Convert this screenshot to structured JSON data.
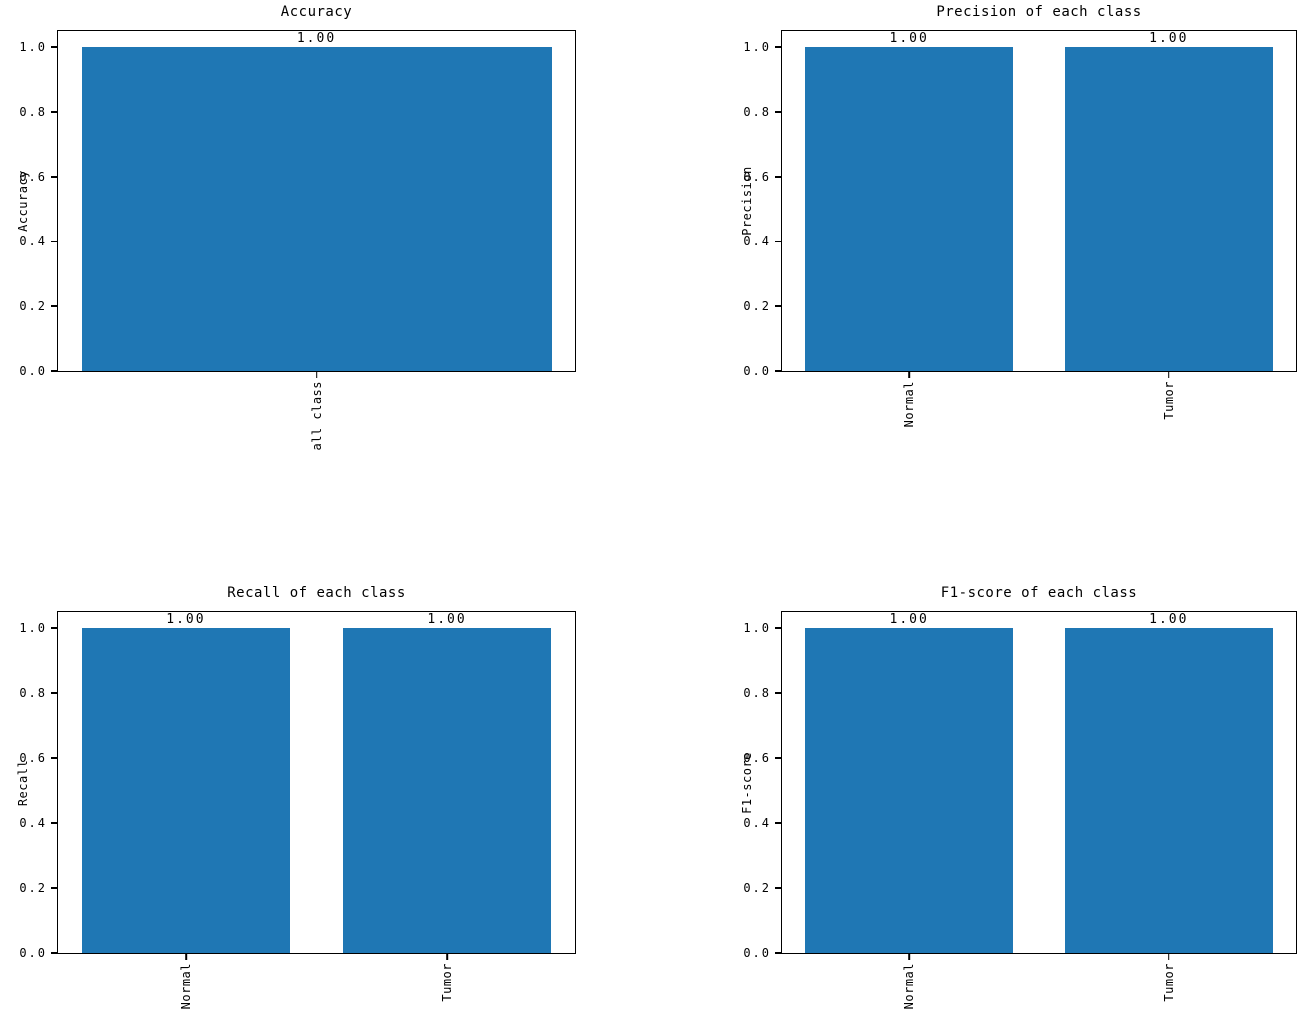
{
  "figure": {
    "background_color": "#ffffff",
    "bar_color": "#1f77b4",
    "axis_color": "#000000"
  },
  "chart_data": [
    {
      "type": "bar",
      "title": "Accuracy",
      "ylabel": "Accuracy",
      "xlabel": "",
      "categories": [
        "all class"
      ],
      "values": [
        1.0
      ],
      "value_labels": [
        "1.00"
      ],
      "yticks": [
        0.0,
        0.2,
        0.4,
        0.6,
        0.8,
        1.0
      ],
      "ytick_labels": [
        "0.0",
        "0.2",
        "0.4",
        "0.6",
        "0.8",
        "1.0"
      ],
      "ylim": [
        0,
        1.05
      ],
      "bar_width": 0.8,
      "x_margin": 0.05,
      "grid": false,
      "legend": null,
      "bar_color": "#1f77b4",
      "xtick_rotation": 90
    },
    {
      "type": "bar",
      "title": "Precision of each class",
      "ylabel": "Precision",
      "xlabel": "",
      "categories": [
        "Normal",
        "Tumor"
      ],
      "values": [
        1.0,
        1.0
      ],
      "value_labels": [
        "1.00",
        "1.00"
      ],
      "yticks": [
        0.0,
        0.2,
        0.4,
        0.6,
        0.8,
        1.0
      ],
      "ytick_labels": [
        "0.0",
        "0.2",
        "0.4",
        "0.6",
        "0.8",
        "1.0"
      ],
      "ylim": [
        0,
        1.05
      ],
      "bar_width": 0.8,
      "x_margin": 0.05,
      "grid": false,
      "legend": null,
      "bar_color": "#1f77b4",
      "xtick_rotation": 90
    },
    {
      "type": "bar",
      "title": "Recall of each class",
      "ylabel": "Recall",
      "xlabel": "",
      "categories": [
        "Normal",
        "Tumor"
      ],
      "values": [
        1.0,
        1.0
      ],
      "value_labels": [
        "1.00",
        "1.00"
      ],
      "yticks": [
        0.0,
        0.2,
        0.4,
        0.6,
        0.8,
        1.0
      ],
      "ytick_labels": [
        "0.0",
        "0.2",
        "0.4",
        "0.6",
        "0.8",
        "1.0"
      ],
      "ylim": [
        0,
        1.05
      ],
      "bar_width": 0.8,
      "x_margin": 0.05,
      "grid": false,
      "legend": null,
      "bar_color": "#1f77b4",
      "xtick_rotation": 90
    },
    {
      "type": "bar",
      "title": "F1-score of each class",
      "ylabel": "F1-score",
      "xlabel": "",
      "categories": [
        "Normal",
        "Tumor"
      ],
      "values": [
        1.0,
        1.0
      ],
      "value_labels": [
        "1.00",
        "1.00"
      ],
      "yticks": [
        0.0,
        0.2,
        0.4,
        0.6,
        0.8,
        1.0
      ],
      "ytick_labels": [
        "0.0",
        "0.2",
        "0.4",
        "0.6",
        "0.8",
        "1.0"
      ],
      "ylim": [
        0,
        1.05
      ],
      "bar_width": 0.8,
      "x_margin": 0.05,
      "grid": false,
      "legend": null,
      "bar_color": "#1f77b4",
      "xtick_rotation": 90
    }
  ]
}
